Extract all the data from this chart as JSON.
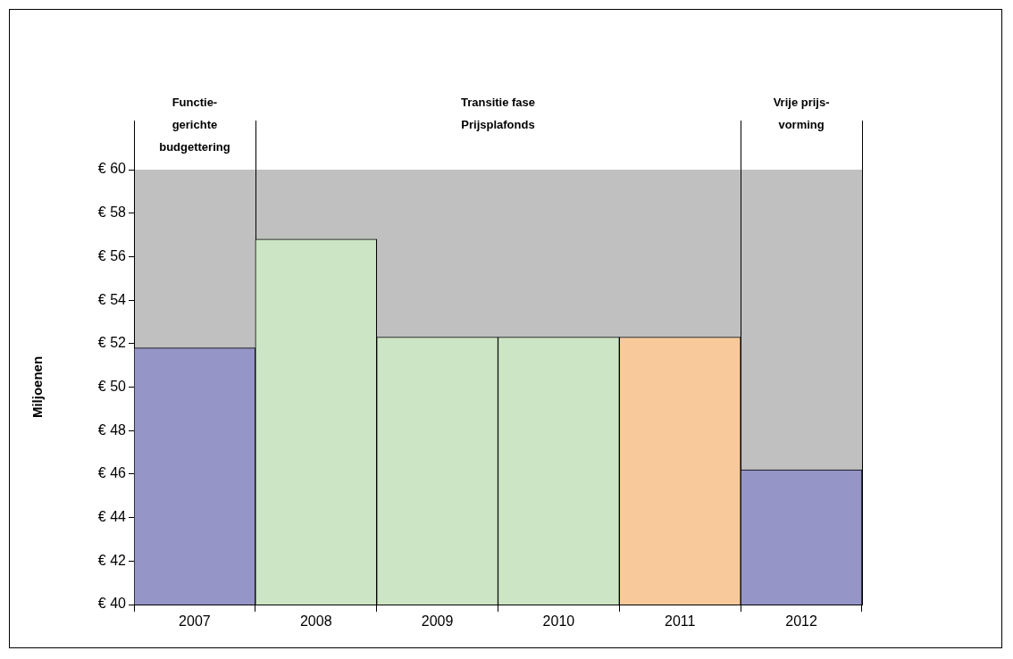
{
  "chart_data": {
    "type": "bar",
    "ylabel": "Miljoenen",
    "categories": [
      "2007",
      "2008",
      "2009",
      "2010",
      "2011",
      "2012"
    ],
    "values": [
      51.8,
      56.8,
      52.3,
      52.3,
      52.3,
      46.2
    ],
    "colors": [
      "#9595c8",
      "#cce5c4",
      "#cce5c4",
      "#cce5c4",
      "#f8c99a",
      "#9595c8"
    ],
    "ylim": [
      40,
      60
    ],
    "yticks": [
      {
        "value": 40,
        "label": "€ 40"
      },
      {
        "value": 42,
        "label": "€ 42"
      },
      {
        "value": 44,
        "label": "€ 44"
      },
      {
        "value": 46,
        "label": "€ 46"
      },
      {
        "value": 48,
        "label": "€ 48"
      },
      {
        "value": 50,
        "label": "€ 50"
      },
      {
        "value": 52,
        "label": "€ 52"
      },
      {
        "value": 54,
        "label": "€ 54"
      },
      {
        "value": 56,
        "label": "€ 56"
      },
      {
        "value": 58,
        "label": "€ 58"
      },
      {
        "value": 60,
        "label": "€ 60"
      }
    ],
    "annotations": [
      "Functie-\ngerichte\nbudgettering",
      "Transitie fase\nPrijsplafonds",
      "Vrije prijs-\nvorming"
    ],
    "grid": false,
    "legend": false
  }
}
